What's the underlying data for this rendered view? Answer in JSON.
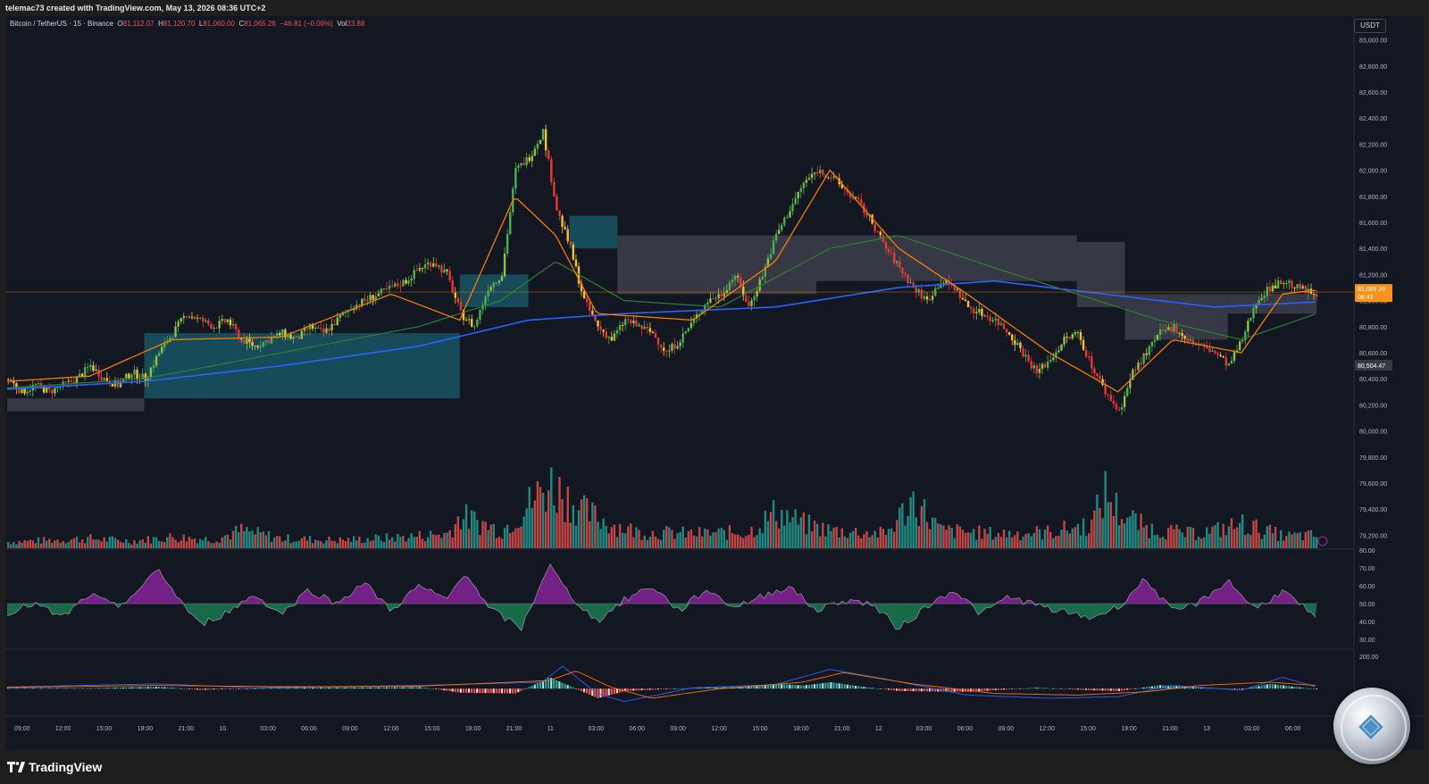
{
  "header": {
    "attribution": "telemac73 created with TradingView.com, May 13, 2026 08:36 UTC+2"
  },
  "legend": {
    "symbol": "Bitcoin / TetherUS · 15 · Binance",
    "open_label": "O",
    "open": "81,112.07",
    "high_label": "H",
    "high": "81,120.70",
    "low_label": "L",
    "low": "81,060.00",
    "close_label": "C",
    "close": "81,065.26",
    "change": "−46.81 (−0.06%)",
    "vol_label": "Vol",
    "vol": "23.88"
  },
  "currency_badge": "USDT",
  "price_tags": {
    "last": "81,065.26",
    "countdown": "08:43",
    "level": "80,504.47",
    "last_color": "#f7931a",
    "level_color": "#363a45"
  },
  "colors": {
    "up": "#26a69a",
    "down": "#ef5350",
    "candle_up": "#4caf50",
    "candle_up2": "#8bc34a",
    "candle_down": "#e53935",
    "candle_yellow": "#fbc02d",
    "ema_fast": "#f57c00",
    "ema_mid": "#2e7d32",
    "ema_slow": "#2962ff",
    "cloud_teal": "#1b5e6e",
    "cloud_gray": "#434651",
    "rsi_up": "#9c27b0",
    "rsi_down": "#1b8e5a",
    "macd_line": "#2962ff",
    "macd_signal": "#ff6d00"
  },
  "chart_data": [
    {
      "type": "candlestick",
      "name": "price",
      "ylim": [
        79100,
        83100
      ],
      "price_ticks": [
        "83,000.00",
        "82,800.00",
        "82,600.00",
        "82,400.00",
        "82,200.00",
        "82,000.00",
        "81,800.00",
        "81,600.00",
        "81,400.00",
        "81,200.00",
        "81,000.00",
        "80,800.00",
        "80,600.00",
        "80,400.00",
        "80,200.00",
        "80,000.00",
        "79,800.00",
        "79,600.00",
        "79,400.00",
        "79,200.00"
      ],
      "price_values": [
        83000,
        82800,
        82600,
        82400,
        82200,
        82000,
        81800,
        81600,
        81400,
        81200,
        81000,
        80800,
        80600,
        80400,
        80200,
        80000,
        79800,
        79600,
        79400,
        79200
      ],
      "key_points": [
        [
          0,
          80400
        ],
        [
          10,
          80300
        ],
        [
          20,
          80350
        ],
        [
          30,
          80300
        ],
        [
          40,
          80350
        ],
        [
          50,
          80400
        ],
        [
          60,
          80500
        ],
        [
          70,
          80400
        ],
        [
          80,
          80350
        ],
        [
          90,
          80450
        ],
        [
          100,
          80400
        ],
        [
          110,
          80600
        ],
        [
          120,
          80750
        ],
        [
          130,
          80900
        ],
        [
          140,
          80850
        ],
        [
          150,
          80800
        ],
        [
          160,
          80850
        ],
        [
          170,
          80700
        ],
        [
          180,
          80650
        ],
        [
          190,
          80700
        ],
        [
          200,
          80750
        ],
        [
          210,
          80700
        ],
        [
          220,
          80800
        ],
        [
          230,
          80750
        ],
        [
          240,
          80850
        ],
        [
          250,
          80950
        ],
        [
          260,
          81000
        ],
        [
          270,
          81050
        ],
        [
          280,
          81100
        ],
        [
          290,
          81150
        ],
        [
          300,
          81250
        ],
        [
          310,
          81300
        ],
        [
          320,
          81200
        ],
        [
          330,
          80900
        ],
        [
          340,
          80800
        ],
        [
          350,
          81100
        ],
        [
          360,
          81200
        ],
        [
          370,
          82000
        ],
        [
          380,
          82100
        ],
        [
          390,
          82300
        ],
        [
          400,
          81700
        ],
        [
          410,
          81400
        ],
        [
          420,
          81000
        ],
        [
          430,
          80800
        ],
        [
          440,
          80700
        ],
        [
          450,
          80850
        ],
        [
          460,
          80800
        ],
        [
          470,
          80750
        ],
        [
          480,
          80600
        ],
        [
          490,
          80700
        ],
        [
          500,
          80850
        ],
        [
          510,
          81000
        ],
        [
          520,
          81050
        ],
        [
          530,
          81200
        ],
        [
          540,
          80950
        ],
        [
          550,
          81200
        ],
        [
          560,
          81500
        ],
        [
          570,
          81700
        ],
        [
          580,
          81900
        ],
        [
          590,
          82000
        ],
        [
          600,
          81950
        ],
        [
          610,
          81850
        ],
        [
          620,
          81750
        ],
        [
          630,
          81600
        ],
        [
          640,
          81400
        ],
        [
          650,
          81250
        ],
        [
          660,
          81100
        ],
        [
          670,
          81000
        ],
        [
          680,
          81150
        ],
        [
          690,
          81100
        ],
        [
          700,
          80950
        ],
        [
          710,
          80900
        ],
        [
          720,
          80850
        ],
        [
          730,
          80750
        ],
        [
          740,
          80600
        ],
        [
          750,
          80450
        ],
        [
          760,
          80550
        ],
        [
          770,
          80700
        ],
        [
          780,
          80750
        ],
        [
          790,
          80500
        ],
        [
          800,
          80300
        ],
        [
          810,
          80150
        ],
        [
          820,
          80450
        ],
        [
          830,
          80600
        ],
        [
          840,
          80750
        ],
        [
          850,
          80800
        ],
        [
          860,
          80700
        ],
        [
          870,
          80650
        ],
        [
          880,
          80600
        ],
        [
          890,
          80500
        ],
        [
          900,
          80700
        ],
        [
          910,
          81000
        ],
        [
          920,
          81100
        ],
        [
          930,
          81150
        ],
        [
          940,
          81100
        ],
        [
          950,
          81060
        ]
      ],
      "ema_fast_points": [
        [
          0,
          80380
        ],
        [
          60,
          80420
        ],
        [
          120,
          80700
        ],
        [
          200,
          80720
        ],
        [
          280,
          81050
        ],
        [
          330,
          80850
        ],
        [
          370,
          81800
        ],
        [
          400,
          81500
        ],
        [
          430,
          80900
        ],
        [
          500,
          80850
        ],
        [
          560,
          81300
        ],
        [
          600,
          82000
        ],
        [
          650,
          81400
        ],
        [
          700,
          81050
        ],
        [
          760,
          80600
        ],
        [
          810,
          80300
        ],
        [
          850,
          80700
        ],
        [
          900,
          80600
        ],
        [
          930,
          81050
        ],
        [
          955,
          81080
        ]
      ],
      "ema_mid_points": [
        [
          0,
          80330
        ],
        [
          100,
          80400
        ],
        [
          200,
          80600
        ],
        [
          300,
          80800
        ],
        [
          360,
          81000
        ],
        [
          400,
          81300
        ],
        [
          450,
          81000
        ],
        [
          520,
          80950
        ],
        [
          600,
          81400
        ],
        [
          650,
          81500
        ],
        [
          720,
          81250
        ],
        [
          780,
          81050
        ],
        [
          840,
          80850
        ],
        [
          900,
          80700
        ],
        [
          955,
          80900
        ]
      ],
      "ema_slow_points": [
        [
          0,
          80320
        ],
        [
          100,
          80380
        ],
        [
          200,
          80500
        ],
        [
          300,
          80650
        ],
        [
          380,
          80850
        ],
        [
          450,
          80900
        ],
        [
          560,
          80950
        ],
        [
          650,
          81100
        ],
        [
          720,
          81150
        ],
        [
          800,
          81050
        ],
        [
          880,
          80950
        ],
        [
          955,
          80990
        ]
      ],
      "cloud_segments": [
        {
          "from": 0,
          "to": 100,
          "top": 80250,
          "bottom": 80150,
          "color": "gray"
        },
        {
          "from": 100,
          "to": 330,
          "top": 80750,
          "bottom": 80250,
          "color": "teal"
        },
        {
          "from": 330,
          "to": 380,
          "top": 81200,
          "bottom": 80950,
          "color": "teal"
        },
        {
          "from": 410,
          "to": 445,
          "top": 81650,
          "bottom": 81400,
          "color": "teal"
        },
        {
          "from": 445,
          "to": 590,
          "top": 81500,
          "bottom": 81050,
          "color": "gray"
        },
        {
          "from": 590,
          "to": 780,
          "top": 81500,
          "bottom": 81150,
          "color": "gray"
        },
        {
          "from": 780,
          "to": 815,
          "top": 81450,
          "bottom": 80950,
          "color": "gray"
        },
        {
          "from": 815,
          "to": 890,
          "top": 81050,
          "bottom": 80700,
          "color": "gray"
        },
        {
          "from": 890,
          "to": 955,
          "top": 81050,
          "bottom": 80900,
          "color": "gray"
        }
      ],
      "x_labels": [
        "09:00",
        "12:00",
        "15:00",
        "18:00",
        "21:00",
        "10",
        "03:00",
        "06:00",
        "09:00",
        "12:00",
        "15:00",
        "18:00",
        "21:00",
        "11",
        "03:00",
        "06:00",
        "09:00",
        "12:00",
        "15:00",
        "18:00",
        "21:00",
        "12",
        "03:00",
        "06:00",
        "09:00",
        "12:00",
        "15:00",
        "18:00",
        "21:00",
        "13",
        "03:00",
        "06:00"
      ]
    },
    {
      "type": "bar",
      "name": "volume",
      "key_points": [
        [
          0,
          8
        ],
        [
          30,
          10
        ],
        [
          60,
          12
        ],
        [
          90,
          9
        ],
        [
          120,
          14
        ],
        [
          150,
          11
        ],
        [
          170,
          22
        ],
        [
          200,
          12
        ],
        [
          240,
          10
        ],
        [
          280,
          13
        ],
        [
          320,
          18
        ],
        [
          330,
          40
        ],
        [
          360,
          22
        ],
        [
          380,
          55
        ],
        [
          395,
          80
        ],
        [
          410,
          60
        ],
        [
          420,
          45
        ],
        [
          440,
          30
        ],
        [
          460,
          20
        ],
        [
          500,
          18
        ],
        [
          540,
          20
        ],
        [
          560,
          45
        ],
        [
          580,
          30
        ],
        [
          600,
          22
        ],
        [
          640,
          18
        ],
        [
          660,
          60
        ],
        [
          680,
          22
        ],
        [
          720,
          18
        ],
        [
          760,
          20
        ],
        [
          790,
          30
        ],
        [
          800,
          70
        ],
        [
          810,
          45
        ],
        [
          830,
          25
        ],
        [
          860,
          18
        ],
        [
          880,
          22
        ],
        [
          900,
          30
        ],
        [
          930,
          15
        ],
        [
          955,
          16
        ]
      ]
    },
    {
      "type": "area",
      "name": "rsi",
      "ylim": [
        25,
        80
      ],
      "midline": 50,
      "ticks": [
        "80.00",
        "70.00",
        "60.00",
        "50.00",
        "40.00",
        "30.00"
      ],
      "tick_values": [
        80,
        70,
        60,
        50,
        40,
        30
      ],
      "key_points": [
        [
          0,
          45
        ],
        [
          20,
          50
        ],
        [
          40,
          42
        ],
        [
          60,
          55
        ],
        [
          80,
          48
        ],
        [
          100,
          60
        ],
        [
          110,
          70
        ],
        [
          120,
          58
        ],
        [
          140,
          38
        ],
        [
          160,
          45
        ],
        [
          180,
          55
        ],
        [
          200,
          44
        ],
        [
          220,
          58
        ],
        [
          240,
          50
        ],
        [
          260,
          62
        ],
        [
          280,
          46
        ],
        [
          300,
          60
        ],
        [
          320,
          52
        ],
        [
          335,
          68
        ],
        [
          350,
          48
        ],
        [
          375,
          36
        ],
        [
          395,
          72
        ],
        [
          410,
          55
        ],
        [
          430,
          40
        ],
        [
          450,
          52
        ],
        [
          470,
          60
        ],
        [
          490,
          46
        ],
        [
          510,
          58
        ],
        [
          530,
          48
        ],
        [
          550,
          54
        ],
        [
          570,
          60
        ],
        [
          590,
          46
        ],
        [
          610,
          52
        ],
        [
          630,
          50
        ],
        [
          650,
          36
        ],
        [
          670,
          48
        ],
        [
          690,
          58
        ],
        [
          710,
          44
        ],
        [
          730,
          54
        ],
        [
          760,
          47
        ],
        [
          790,
          42
        ],
        [
          810,
          48
        ],
        [
          830,
          64
        ],
        [
          850,
          45
        ],
        [
          870,
          51
        ],
        [
          890,
          63
        ],
        [
          910,
          47
        ],
        [
          930,
          57
        ],
        [
          945,
          48
        ],
        [
          955,
          40
        ]
      ]
    },
    {
      "type": "histogram",
      "name": "macd",
      "ylim": [
        -160,
        240
      ],
      "ticks": [
        "200.00"
      ],
      "tick_values": [
        200
      ],
      "key_points": [
        [
          0,
          5
        ],
        [
          60,
          3
        ],
        [
          110,
          12
        ],
        [
          140,
          -8
        ],
        [
          200,
          6
        ],
        [
          300,
          10
        ],
        [
          330,
          -25
        ],
        [
          370,
          -30
        ],
        [
          395,
          70
        ],
        [
          410,
          15
        ],
        [
          430,
          -60
        ],
        [
          450,
          -15
        ],
        [
          500,
          5
        ],
        [
          540,
          12
        ],
        [
          560,
          30
        ],
        [
          580,
          20
        ],
        [
          600,
          40
        ],
        [
          620,
          15
        ],
        [
          650,
          -15
        ],
        [
          700,
          -20
        ],
        [
          750,
          6
        ],
        [
          790,
          -10
        ],
        [
          810,
          -15
        ],
        [
          840,
          22
        ],
        [
          870,
          8
        ],
        [
          900,
          -5
        ],
        [
          920,
          30
        ],
        [
          940,
          10
        ],
        [
          955,
          -5
        ]
      ],
      "macd_line_points": [
        [
          0,
          10
        ],
        [
          110,
          30
        ],
        [
          180,
          5
        ],
        [
          300,
          20
        ],
        [
          390,
          40
        ],
        [
          405,
          140
        ],
        [
          430,
          -30
        ],
        [
          450,
          -80
        ],
        [
          500,
          5
        ],
        [
          560,
          25
        ],
        [
          600,
          120
        ],
        [
          640,
          60
        ],
        [
          700,
          -40
        ],
        [
          760,
          -60
        ],
        [
          810,
          -50
        ],
        [
          850,
          20
        ],
        [
          900,
          -10
        ],
        [
          930,
          70
        ],
        [
          955,
          10
        ]
      ],
      "signal_line_points": [
        [
          0,
          8
        ],
        [
          110,
          20
        ],
        [
          200,
          12
        ],
        [
          300,
          15
        ],
        [
          395,
          50
        ],
        [
          415,
          110
        ],
        [
          440,
          10
        ],
        [
          470,
          -60
        ],
        [
          520,
          0
        ],
        [
          580,
          40
        ],
        [
          610,
          100
        ],
        [
          660,
          30
        ],
        [
          720,
          -30
        ],
        [
          780,
          -40
        ],
        [
          830,
          -20
        ],
        [
          870,
          20
        ],
        [
          920,
          40
        ],
        [
          955,
          20
        ]
      ]
    }
  ]
}
